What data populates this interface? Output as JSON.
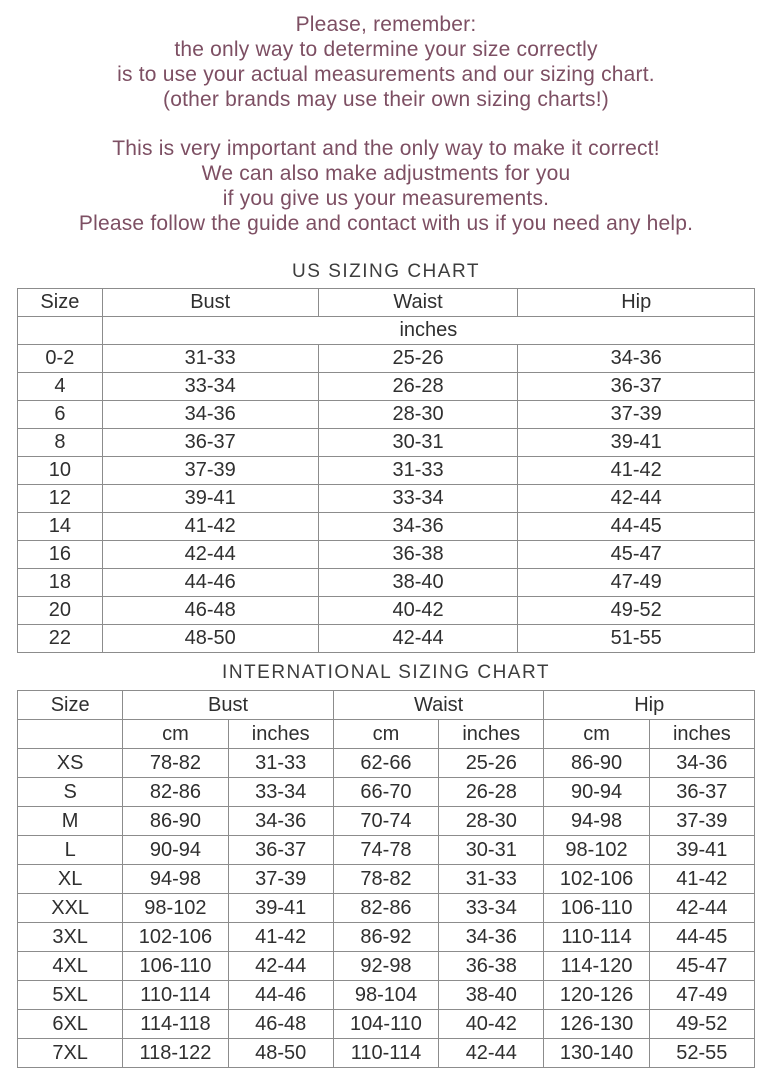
{
  "colors": {
    "intro_text": "#7d4f63",
    "title_text": "#3d3d3d",
    "table_text": "#2f2f2f",
    "table_border": "#8c8c8c"
  },
  "intro": {
    "paragraph1": [
      "Please, remember:",
      "the only way to determine your size correctly",
      "is to use your actual measurements and our sizing chart.",
      "(other brands may use their own sizing charts!)"
    ],
    "paragraph2": [
      "This is very important and the only way to make it correct!",
      "We can also make adjustments for you",
      "if you give us your measurements.",
      "Please follow the guide and contact with us if you need any help."
    ]
  },
  "us_chart": {
    "title": "US SIZING CHART",
    "columns": [
      "Size",
      "Bust",
      "Waist",
      "Hip"
    ],
    "unit_label": "inches",
    "rows": [
      {
        "size": "0-2",
        "bust": "31-33",
        "waist": "25-26",
        "hip": "34-36"
      },
      {
        "size": "4",
        "bust": "33-34",
        "waist": "26-28",
        "hip": "36-37"
      },
      {
        "size": "6",
        "bust": "34-36",
        "waist": "28-30",
        "hip": "37-39"
      },
      {
        "size": "8",
        "bust": "36-37",
        "waist": "30-31",
        "hip": "39-41"
      },
      {
        "size": "10",
        "bust": "37-39",
        "waist": "31-33",
        "hip": "41-42"
      },
      {
        "size": "12",
        "bust": "39-41",
        "waist": "33-34",
        "hip": "42-44"
      },
      {
        "size": "14",
        "bust": "41-42",
        "waist": "34-36",
        "hip": "44-45"
      },
      {
        "size": "16",
        "bust": "42-44",
        "waist": "36-38",
        "hip": "45-47"
      },
      {
        "size": "18",
        "bust": "44-46",
        "waist": "38-40",
        "hip": "47-49"
      },
      {
        "size": "20",
        "bust": "46-48",
        "waist": "40-42",
        "hip": "49-52"
      },
      {
        "size": "22",
        "bust": "48-50",
        "waist": "42-44",
        "hip": "51-55"
      }
    ]
  },
  "intl_chart": {
    "title": "INTERNATIONAL SIZING CHART",
    "columns": [
      "Size",
      "Bust",
      "Waist",
      "Hip"
    ],
    "sub_columns": [
      "cm",
      "inches"
    ],
    "rows": [
      {
        "size": "XS",
        "bust_cm": "78-82",
        "bust_in": "31-33",
        "waist_cm": "62-66",
        "waist_in": "25-26",
        "hip_cm": "86-90",
        "hip_in": "34-36"
      },
      {
        "size": "S",
        "bust_cm": "82-86",
        "bust_in": "33-34",
        "waist_cm": "66-70",
        "waist_in": "26-28",
        "hip_cm": "90-94",
        "hip_in": "36-37"
      },
      {
        "size": "M",
        "bust_cm": "86-90",
        "bust_in": "34-36",
        "waist_cm": "70-74",
        "waist_in": "28-30",
        "hip_cm": "94-98",
        "hip_in": "37-39"
      },
      {
        "size": "L",
        "bust_cm": "90-94",
        "bust_in": "36-37",
        "waist_cm": "74-78",
        "waist_in": "30-31",
        "hip_cm": "98-102",
        "hip_in": "39-41"
      },
      {
        "size": "XL",
        "bust_cm": "94-98",
        "bust_in": "37-39",
        "waist_cm": "78-82",
        "waist_in": "31-33",
        "hip_cm": "102-106",
        "hip_in": "41-42"
      },
      {
        "size": "XXL",
        "bust_cm": "98-102",
        "bust_in": "39-41",
        "waist_cm": "82-86",
        "waist_in": "33-34",
        "hip_cm": "106-110",
        "hip_in": "42-44"
      },
      {
        "size": "3XL",
        "bust_cm": "102-106",
        "bust_in": "41-42",
        "waist_cm": "86-92",
        "waist_in": "34-36",
        "hip_cm": "110-114",
        "hip_in": "44-45"
      },
      {
        "size": "4XL",
        "bust_cm": "106-110",
        "bust_in": "42-44",
        "waist_cm": "92-98",
        "waist_in": "36-38",
        "hip_cm": "114-120",
        "hip_in": "45-47"
      },
      {
        "size": "5XL",
        "bust_cm": "110-114",
        "bust_in": "44-46",
        "waist_cm": "98-104",
        "waist_in": "38-40",
        "hip_cm": "120-126",
        "hip_in": "47-49"
      },
      {
        "size": "6XL",
        "bust_cm": "114-118",
        "bust_in": "46-48",
        "waist_cm": "104-110",
        "waist_in": "40-42",
        "hip_cm": "126-130",
        "hip_in": "49-52"
      },
      {
        "size": "7XL",
        "bust_cm": "118-122",
        "bust_in": "48-50",
        "waist_cm": "110-114",
        "waist_in": "42-44",
        "hip_cm": "130-140",
        "hip_in": "52-55"
      }
    ]
  }
}
